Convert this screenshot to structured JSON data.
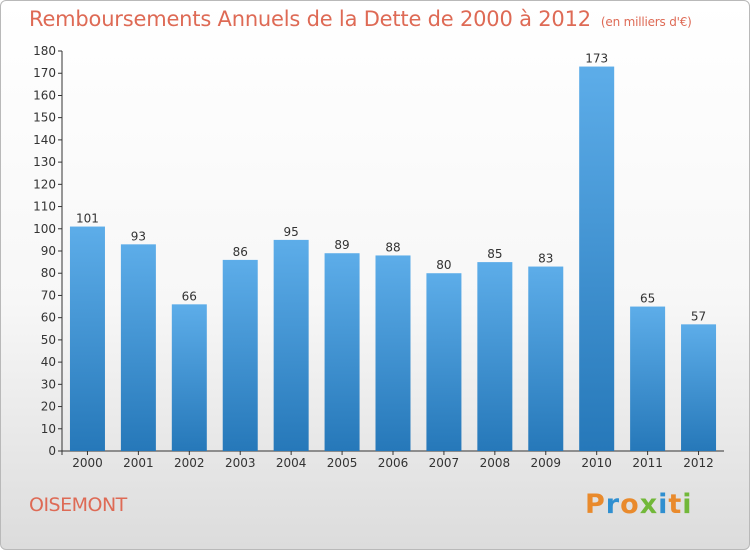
{
  "header": {
    "title": "Remboursements Annuels de la Dette de 2000 à 2012",
    "unit": "(en milliers d'€)"
  },
  "footer": {
    "city": "OISEMONT",
    "logo": "Proxiti"
  },
  "colors": {
    "title": "#de6a55",
    "bar_top": "#5dade9",
    "bar_bottom": "#2678b9",
    "logo_letters": [
      "#e98a2c",
      "#2f8fd0",
      "#e98a2c",
      "#72b83a",
      "#2f8fd0",
      "#e98a2c",
      "#72b83a"
    ]
  },
  "chart_data": {
    "type": "bar",
    "title": "Remboursements Annuels de la Dette de 2000 à 2012",
    "xlabel": "",
    "ylabel": "(en milliers d'€)",
    "categories": [
      "2000",
      "2001",
      "2002",
      "2003",
      "2004",
      "2005",
      "2006",
      "2007",
      "2008",
      "2009",
      "2010",
      "2011",
      "2012"
    ],
    "values": [
      101,
      93,
      66,
      86,
      95,
      89,
      88,
      80,
      85,
      83,
      173,
      65,
      57
    ],
    "ylim": [
      0,
      180
    ],
    "yticks": [
      0,
      10,
      20,
      30,
      40,
      50,
      60,
      70,
      80,
      90,
      100,
      110,
      120,
      130,
      140,
      150,
      160,
      170,
      180
    ],
    "grid": false,
    "data_labels": true
  }
}
